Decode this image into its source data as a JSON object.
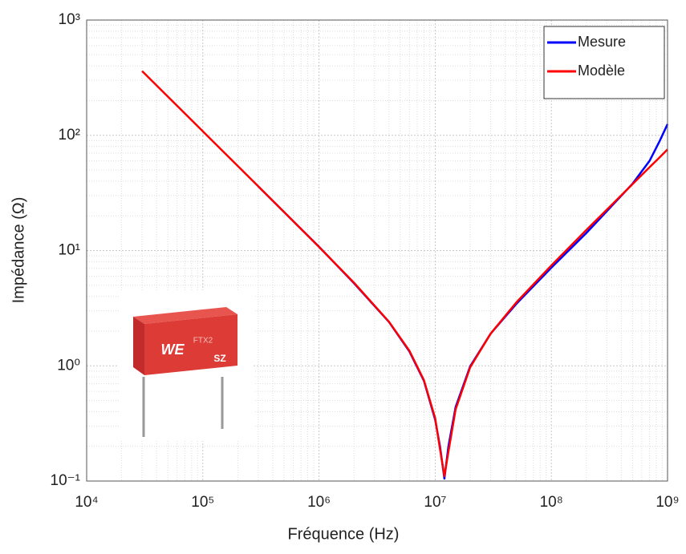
{
  "chart_data": {
    "type": "line",
    "x_label": "Fréquence (Hz)",
    "y_label": "Impédance (Ω)",
    "x": [
      30000,
      100000,
      300000,
      1000000,
      2000000,
      4000000,
      6000000,
      8000000,
      10000000,
      11000000,
      12000000,
      13000000,
      15000000,
      20000000,
      30000000,
      50000000,
      100000000,
      200000000,
      500000000,
      700000000,
      850000000,
      1000000000
    ],
    "series": [
      {
        "name": "Mesure",
        "color": "#0000ff",
        "values": [
          null,
          null,
          36.0,
          10.8,
          5.2,
          2.4,
          1.33,
          0.74,
          0.34,
          0.2,
          0.105,
          0.2,
          0.44,
          0.99,
          1.9,
          3.45,
          7.1,
          14.2,
          38,
          60,
          88,
          125
        ]
      },
      {
        "name": "Modèle",
        "color": "#ff0000",
        "values": [
          361,
          108.3,
          36.1,
          10.75,
          5.26,
          2.41,
          1.35,
          0.75,
          0.35,
          0.19,
          0.11,
          0.18,
          0.42,
          0.97,
          1.9,
          3.55,
          7.43,
          15.08,
          37.7,
          52.8,
          64,
          75.4
        ]
      }
    ],
    "xscale": "log",
    "yscale": "log",
    "xlim": [
      10000,
      1000000000
    ],
    "xticks": [
      {
        "value": 10000,
        "label": "10⁴"
      },
      {
        "value": 100000,
        "label": "10⁵"
      },
      {
        "value": 1000000,
        "label": "10⁶"
      },
      {
        "value": 10000000,
        "label": "10⁷"
      },
      {
        "value": 100000000,
        "label": "10⁸"
      },
      {
        "value": 1000000000,
        "label": "10⁹"
      }
    ],
    "ylim": [
      0.1,
      1000
    ],
    "yticks": [
      {
        "value": 0.1,
        "label": "10⁻¹"
      },
      {
        "value": 1,
        "label": "10⁰"
      },
      {
        "value": 10,
        "label": "10¹"
      },
      {
        "value": 100,
        "label": "10²"
      },
      {
        "value": 1000,
        "label": "10³"
      }
    ],
    "grid": true,
    "legend": "northeast"
  },
  "inset_image": {
    "logo": "WE",
    "model": "FTX2",
    "mark": "SZ"
  }
}
